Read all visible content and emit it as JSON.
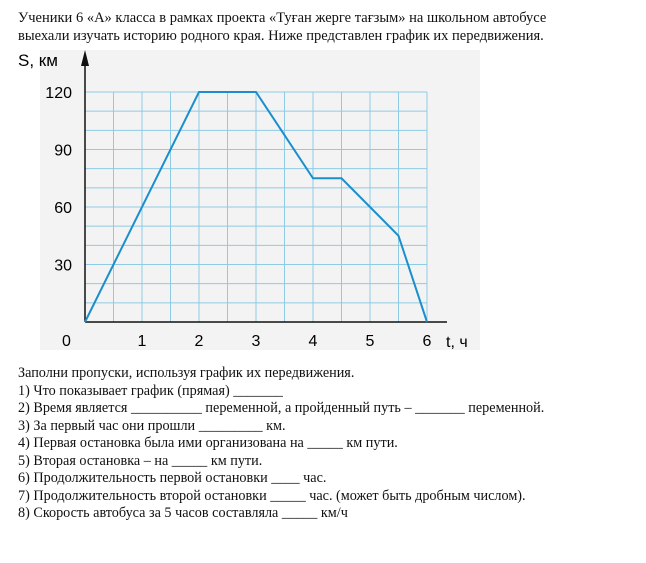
{
  "intro_text": [
    "Ученики 6 «А» класса в рамках проекта «Туған жерге тағзым» на школьном автобусе",
    "выехали изучать историю родного края. Ниже представлен график их передвижения."
  ],
  "chart_data": {
    "type": "line",
    "xlabel": "t, ч",
    "ylabel": "S, км",
    "xlim": [
      0,
      6
    ],
    "ylim": [
      0,
      120
    ],
    "x_ticks": [
      1,
      2,
      3,
      4,
      5,
      6
    ],
    "y_ticks": [
      30,
      60,
      90,
      120
    ],
    "origin_label": "0",
    "grid": true,
    "grid_step": {
      "x": 0.5,
      "y": 10
    },
    "x": [
      0,
      2,
      3,
      4,
      4.5,
      5.5,
      6
    ],
    "y": [
      0,
      120,
      120,
      75,
      75,
      45,
      0
    ],
    "colors": {
      "line": "#1a8fcc",
      "grid": "#8fcbe4",
      "background": "#f3f3f3"
    }
  },
  "questions": {
    "header": "Заполни пропуски, используя график их передвижения.",
    "items": [
      "1) Что показывает график (прямая) _______",
      "2) Время является __________ переменной, а пройденный путь – _______ переменной.",
      "3) За первый час они прошли _________ км.",
      "4) Первая остановка была ими организована на _____ км пути.",
      "5) Вторая остановка – на _____ км пути.",
      "6) Продолжительность первой остановки ____ час.",
      "7) Продолжительность второй остановки _____ час. (может быть дробным числом).",
      "8) Скорость автобуса за 5 часов составляла _____ км/ч"
    ]
  }
}
